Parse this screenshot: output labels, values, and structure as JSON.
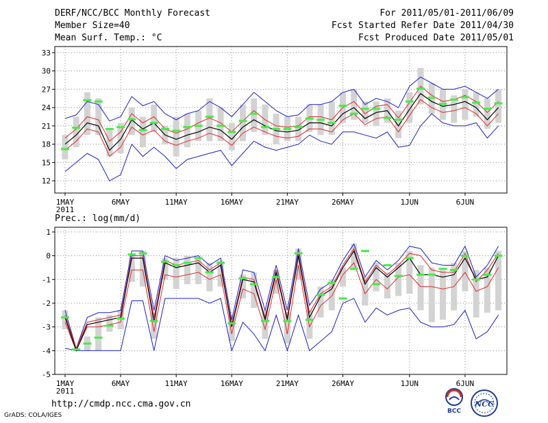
{
  "header": {
    "title": "DERF/NCC/BCC Monthly Forecast",
    "member_size": "Member Size=40",
    "variable_top": "Mean Surf. Temp.: °C",
    "forecast_period": "For 2011/05/01-2011/06/09",
    "fcst_started": "Fcst Started Refer Date 2011/04/30",
    "fcst_produced": "Fcst Produced Date 2011/05/01"
  },
  "footer": {
    "url": "http://cmdp.ncc.cma.gov.cn",
    "grads": "GrADS: COLA/IGES",
    "logo_bcc_text": "BCC",
    "logo_ncc_text": "NCC"
  },
  "colors": {
    "mean": "#000000",
    "spread": "#e0282e",
    "range": "#1d1dcc",
    "box": "#d3d3d3",
    "obs": "#44ee44",
    "grid": "#888888"
  },
  "chart_data": [
    {
      "type": "line",
      "title": "Mean Surf. Temp.: °C",
      "x_tick_labels": [
        "1MAY",
        "6MAY",
        "11MAY",
        "16MAY",
        "21MAY",
        "26MAY",
        "1JUN",
        "6JUN"
      ],
      "x_tick_days": [
        1,
        6,
        11,
        16,
        21,
        26,
        32,
        37
      ],
      "x_sub_label": "2011",
      "ylim": [
        10,
        34
      ],
      "y_ticks": [
        12,
        15,
        18,
        21,
        24,
        27,
        30,
        33
      ],
      "days": [
        1,
        2,
        3,
        4,
        5,
        6,
        7,
        8,
        9,
        10,
        11,
        12,
        13,
        14,
        15,
        16,
        17,
        18,
        19,
        20,
        21,
        22,
        23,
        24,
        25,
        26,
        27,
        28,
        29,
        30,
        31,
        32,
        33,
        34,
        35,
        36,
        37,
        38,
        39,
        40
      ],
      "series": [
        {
          "name": "ensemble max",
          "values": [
            22.2,
            22.8,
            25.0,
            24.5,
            21.8,
            22.5,
            25.8,
            24.3,
            25.0,
            23.0,
            22.0,
            23.0,
            23.5,
            25.0,
            24.0,
            22.5,
            24.5,
            26.5,
            25.0,
            23.5,
            22.5,
            22.8,
            24.5,
            24.5,
            25.0,
            26.5,
            27.0,
            24.5,
            25.5,
            25.0,
            24.0,
            27.5,
            29.0,
            28.0,
            27.0,
            27.0,
            27.5,
            26.5,
            25.5,
            27.0
          ]
        },
        {
          "name": "upper spread",
          "values": [
            19.0,
            20.5,
            22.5,
            22.0,
            18.5,
            20.0,
            23.0,
            21.5,
            22.5,
            20.5,
            19.8,
            20.5,
            21.5,
            22.3,
            21.5,
            20.0,
            21.8,
            23.5,
            22.0,
            21.0,
            20.8,
            21.0,
            22.5,
            22.5,
            22.0,
            24.0,
            25.0,
            23.0,
            24.2,
            24.5,
            22.3,
            24.8,
            27.5,
            26.0,
            25.0,
            25.3,
            26.0,
            25.0,
            23.2,
            25.0
          ]
        },
        {
          "name": "ensemble mean",
          "values": [
            18.0,
            19.5,
            21.5,
            21.0,
            17.0,
            18.8,
            22.0,
            20.5,
            21.5,
            19.5,
            18.8,
            19.5,
            20.0,
            20.8,
            20.3,
            18.8,
            20.8,
            22.0,
            21.0,
            20.2,
            20.0,
            20.3,
            21.5,
            21.5,
            21.0,
            23.0,
            24.0,
            22.2,
            23.2,
            23.5,
            21.0,
            23.7,
            26.3,
            25.0,
            24.2,
            24.5,
            25.0,
            24.0,
            22.0,
            24.0
          ]
        },
        {
          "name": "lower spread",
          "values": [
            17.0,
            18.5,
            20.5,
            20.0,
            16.0,
            17.5,
            20.8,
            19.5,
            20.3,
            18.5,
            17.8,
            18.5,
            19.0,
            19.8,
            19.2,
            17.8,
            19.8,
            20.8,
            20.0,
            19.3,
            19.0,
            19.3,
            20.5,
            20.5,
            20.0,
            22.0,
            23.0,
            21.2,
            22.2,
            22.5,
            20.0,
            22.7,
            25.3,
            24.0,
            23.2,
            23.5,
            24.0,
            23.0,
            21.0,
            23.0
          ]
        },
        {
          "name": "ensemble min",
          "values": [
            13.5,
            15.0,
            16.5,
            15.5,
            12.0,
            13.0,
            18.0,
            16.0,
            17.5,
            16.0,
            14.0,
            15.5,
            16.0,
            16.5,
            17.0,
            14.5,
            16.5,
            18.5,
            17.5,
            17.0,
            17.5,
            18.0,
            19.5,
            18.5,
            18.0,
            20.0,
            20.0,
            19.5,
            19.0,
            20.0,
            17.5,
            17.8,
            21.0,
            23.0,
            21.5,
            21.0,
            21.0,
            21.5,
            19.0,
            21.0
          ]
        },
        {
          "name": "box upper",
          "values": [
            19.5,
            22.5,
            26.5,
            25.5,
            20.5,
            21.5,
            24.0,
            22.5,
            24.5,
            21.0,
            22.5,
            23.0,
            23.5,
            25.5,
            24.0,
            21.5,
            24.5,
            25.5,
            24.5,
            23.0,
            22.5,
            22.5,
            24.5,
            24.5,
            25.0,
            26.5,
            27.0,
            25.0,
            25.0,
            25.5,
            23.5,
            26.5,
            30.5,
            28.0,
            27.0,
            26.0,
            27.0,
            26.5,
            25.5,
            27.0
          ]
        },
        {
          "name": "box lower",
          "values": [
            15.5,
            17.5,
            19.5,
            19.5,
            16.0,
            16.5,
            19.5,
            17.5,
            20.0,
            18.0,
            16.0,
            17.5,
            18.5,
            18.5,
            18.5,
            17.0,
            18.5,
            20.0,
            19.5,
            18.0,
            18.5,
            18.5,
            20.0,
            19.5,
            19.5,
            21.5,
            22.0,
            21.5,
            21.0,
            21.5,
            19.0,
            21.5,
            24.5,
            23.0,
            22.0,
            21.5,
            22.0,
            22.5,
            20.5,
            21.5
          ]
        },
        {
          "name": "observed",
          "values": [
            17.2,
            20.7,
            25.2,
            25.0,
            20.5,
            20.8,
            22.1,
            20.3,
            21.5,
            20.5,
            20.2,
            20.8,
            21.0,
            22.5,
            21.0,
            20.0,
            21.8,
            23.0,
            20.8,
            20.5,
            20.5,
            20.8,
            22.2,
            22.0,
            21.5,
            24.3,
            23.0,
            23.8,
            23.8,
            22.3,
            22.0,
            25.0,
            27.1,
            25.6,
            24.6,
            25.3,
            25.7,
            24.8,
            23.8,
            24.7
          ]
        }
      ]
    },
    {
      "type": "line",
      "title": "Prec.: log(mm/d)",
      "x_tick_labels": [
        "1MAY",
        "6MAY",
        "11MAY",
        "16MAY",
        "21MAY",
        "26MAY",
        "1JUN",
        "6JUN"
      ],
      "x_tick_days": [
        1,
        6,
        11,
        16,
        21,
        26,
        32,
        37
      ],
      "x_sub_label": "2011",
      "ylim": [
        -5,
        1.2
      ],
      "y_ticks": [
        -5,
        -4,
        -3,
        -2,
        -1,
        0,
        1
      ],
      "days": [
        1,
        2,
        3,
        4,
        5,
        6,
        7,
        8,
        9,
        10,
        11,
        12,
        13,
        14,
        15,
        16,
        17,
        18,
        19,
        20,
        21,
        22,
        23,
        24,
        25,
        26,
        27,
        28,
        29,
        30,
        31,
        32,
        33,
        34,
        35,
        36,
        37,
        38,
        39,
        40
      ],
      "series": [
        {
          "name": "ensemble max",
          "values": [
            -2.3,
            -3.9,
            -2.6,
            -2.4,
            -2.4,
            -2.3,
            0.2,
            0.2,
            -2.3,
            0.0,
            -0.2,
            -0.1,
            0.0,
            -0.4,
            -0.1,
            -2.7,
            -0.6,
            -0.7,
            -2.3,
            -0.4,
            -2.3,
            0.3,
            -2.1,
            -1.4,
            -1.1,
            -0.2,
            0.5,
            -0.9,
            -0.2,
            -0.6,
            -0.2,
            0.4,
            0.3,
            -0.3,
            -0.4,
            -0.4,
            0.4,
            -0.9,
            -0.4,
            0.4
          ]
        },
        {
          "name": "upper spread",
          "values": [
            -2.5,
            -3.9,
            -2.8,
            -2.7,
            -2.6,
            -2.5,
            0.0,
            0.0,
            -2.6,
            -0.2,
            -0.4,
            -0.3,
            -0.2,
            -0.6,
            -0.3,
            -2.9,
            -0.9,
            -1.0,
            -2.6,
            -0.6,
            -2.6,
            0.1,
            -2.4,
            -1.6,
            -1.3,
            -0.4,
            0.3,
            -1.1,
            -0.4,
            -0.8,
            -0.4,
            0.1,
            0.0,
            -0.6,
            -0.7,
            -0.7,
            0.1,
            -1.1,
            -0.6,
            0.1
          ]
        },
        {
          "name": "ensemble mean",
          "values": [
            -2.6,
            -4.0,
            -2.9,
            -2.8,
            -2.7,
            -2.6,
            -0.1,
            -0.1,
            -2.8,
            -0.3,
            -0.5,
            -0.4,
            -0.3,
            -0.7,
            -0.4,
            -3.0,
            -1.0,
            -1.1,
            -2.7,
            -0.7,
            -2.7,
            0.0,
            -2.6,
            -1.7,
            -1.4,
            -0.5,
            0.2,
            -1.2,
            -0.5,
            -0.9,
            -0.5,
            -0.1,
            -0.8,
            -0.8,
            -0.9,
            -0.8,
            -0.1,
            -1.0,
            -0.9,
            0.0
          ]
        },
        {
          "name": "lower spread",
          "values": [
            -2.8,
            -4.0,
            -3.0,
            -3.0,
            -2.9,
            -2.8,
            -0.6,
            -0.6,
            -3.2,
            -0.8,
            -0.9,
            -0.8,
            -0.7,
            -1.0,
            -0.8,
            -3.3,
            -1.4,
            -1.6,
            -3.1,
            -1.0,
            -3.3,
            -0.4,
            -3.0,
            -2.1,
            -1.7,
            -0.8,
            -0.3,
            -1.6,
            -1.0,
            -1.4,
            -0.9,
            -0.8,
            -1.3,
            -1.3,
            -1.4,
            -1.3,
            -0.7,
            -1.5,
            -1.3,
            -0.5
          ]
        },
        {
          "name": "ensemble min",
          "values": [
            -3.9,
            -4.0,
            -4.0,
            -4.0,
            -4.0,
            -4.0,
            -1.9,
            -1.9,
            -4.0,
            -1.8,
            -1.8,
            -1.8,
            -1.8,
            -2.0,
            -1.8,
            -4.0,
            -2.8,
            -3.3,
            -4.0,
            -2.5,
            -4.0,
            -2.5,
            -4.0,
            -3.6,
            -3.2,
            -2.0,
            -1.8,
            -2.8,
            -2.2,
            -2.5,
            -2.3,
            -2.2,
            -2.8,
            -3.0,
            -3.0,
            -2.9,
            -2.3,
            -3.5,
            -3.2,
            -2.5
          ]
        },
        {
          "name": "box upper",
          "values": [
            -2.3,
            -3.9,
            -3.4,
            -2.6,
            -2.5,
            -2.3,
            0.1,
            0.2,
            -2.4,
            -0.1,
            -0.1,
            0.0,
            -0.1,
            -0.3,
            -0.2,
            -2.5,
            -0.8,
            -0.7,
            -2.3,
            -0.6,
            -2.4,
            0.3,
            -2.3,
            -1.3,
            -1.0,
            -0.5,
            0.5,
            -0.9,
            -0.3,
            -0.7,
            -0.3,
            0.2,
            -0.4,
            -0.5,
            -0.6,
            -0.3,
            0.2,
            -0.6,
            -0.5,
            0.2
          ]
        },
        {
          "name": "box lower",
          "values": [
            -3.1,
            -4.0,
            -4.0,
            -4.0,
            -3.2,
            -3.1,
            -1.1,
            -1.3,
            -3.5,
            -1.0,
            -1.4,
            -1.2,
            -1.2,
            -1.5,
            -1.3,
            -3.6,
            -1.8,
            -2.2,
            -3.5,
            -1.6,
            -3.7,
            -1.0,
            -3.5,
            -2.6,
            -2.3,
            -1.3,
            -0.6,
            -2.1,
            -1.5,
            -1.8,
            -1.7,
            -1.6,
            -2.3,
            -2.8,
            -2.7,
            -2.3,
            -1.5,
            -2.6,
            -2.4,
            -2.3
          ]
        },
        {
          "name": "observed",
          "values": [
            -2.6,
            -3.95,
            -3.7,
            -3.45,
            -2.95,
            -2.65,
            0.05,
            0.1,
            -2.75,
            -0.25,
            -0.4,
            -0.3,
            -0.1,
            -0.7,
            -0.3,
            -2.85,
            -0.95,
            -1.2,
            -2.75,
            -0.9,
            -2.75,
            0.1,
            -2.7,
            -1.65,
            -1.15,
            -1.8,
            -0.55,
            0.2,
            -1.2,
            -0.4,
            -0.85,
            -0.1,
            -0.8,
            -0.8,
            -0.55,
            -0.6,
            0.0,
            -1.0,
            -0.8,
            0.0
          ]
        }
      ]
    }
  ]
}
